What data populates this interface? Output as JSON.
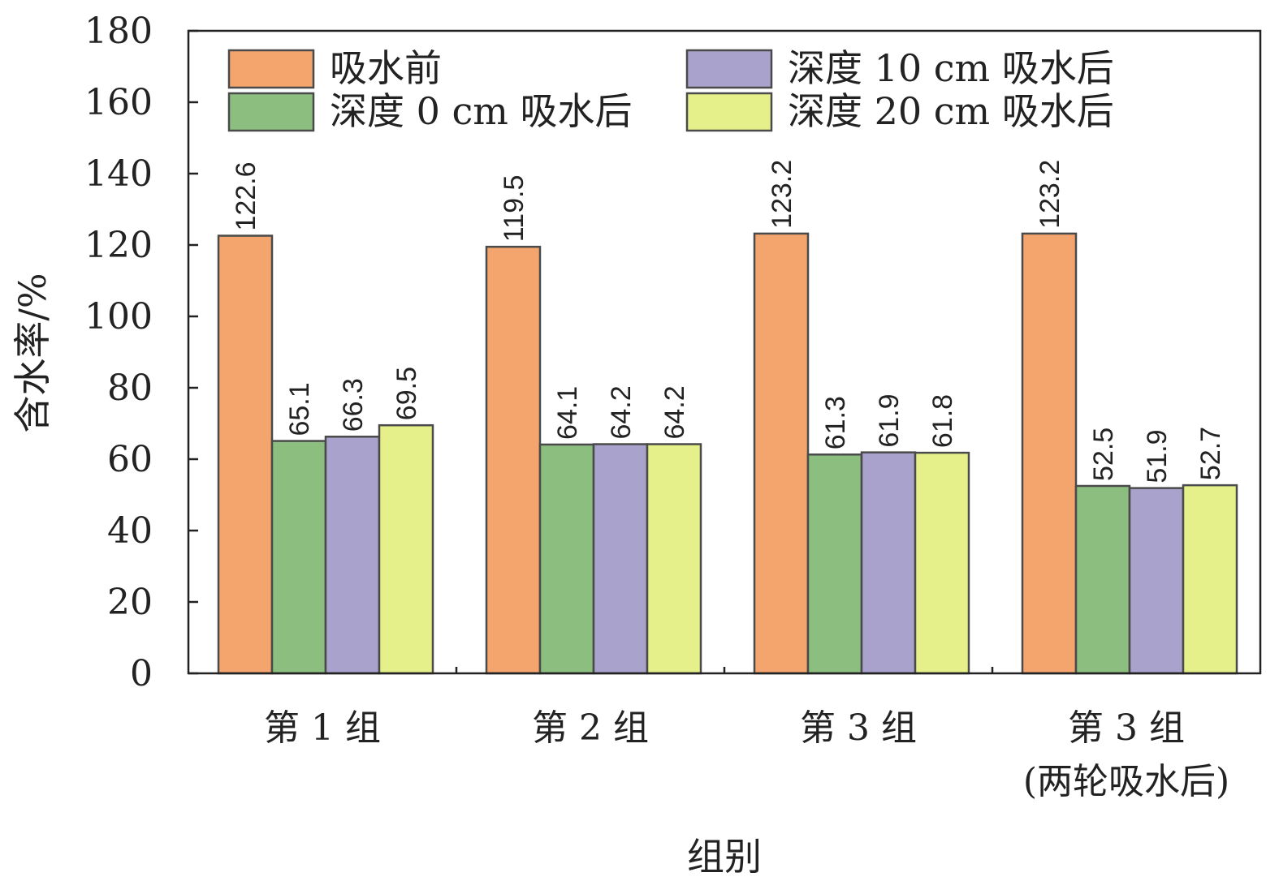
{
  "chart_data": {
    "type": "bar",
    "xlabel": "组别",
    "ylabel": "含水率/%",
    "ylim": [
      0,
      180
    ],
    "yticks": [
      0,
      20,
      40,
      60,
      80,
      100,
      120,
      140,
      160,
      180
    ],
    "grid": false,
    "legend_position": "top",
    "categories": [
      [
        "第 1 组"
      ],
      [
        "第 2 组"
      ],
      [
        "第 3 组"
      ],
      [
        "第 3 组",
        "(两轮吸水后)"
      ]
    ],
    "series": [
      {
        "name": "吸水前",
        "color": "#f4a56e",
        "values": [
          122.6,
          119.5,
          123.2,
          123.2
        ],
        "labels": [
          "122.6",
          "119.5",
          "123.2",
          "123.2"
        ]
      },
      {
        "name": "深度 0 cm 吸水后",
        "color": "#8cbe80",
        "values": [
          65.1,
          64.1,
          61.3,
          52.5
        ],
        "labels": [
          "65.1",
          "64.1",
          "61.3",
          "52.5"
        ]
      },
      {
        "name": "深度 10 cm 吸水后",
        "color": "#a8a2cc",
        "values": [
          66.3,
          64.2,
          61.9,
          51.9
        ],
        "labels": [
          "66.3",
          "64.2",
          "61.9",
          "51.9"
        ]
      },
      {
        "name": "深度 20 cm 吸水后",
        "color": "#e6f08a",
        "values": [
          69.5,
          64.2,
          61.8,
          52.7
        ],
        "labels": [
          "69.5",
          "64.2",
          "61.8",
          "52.7"
        ]
      }
    ]
  }
}
